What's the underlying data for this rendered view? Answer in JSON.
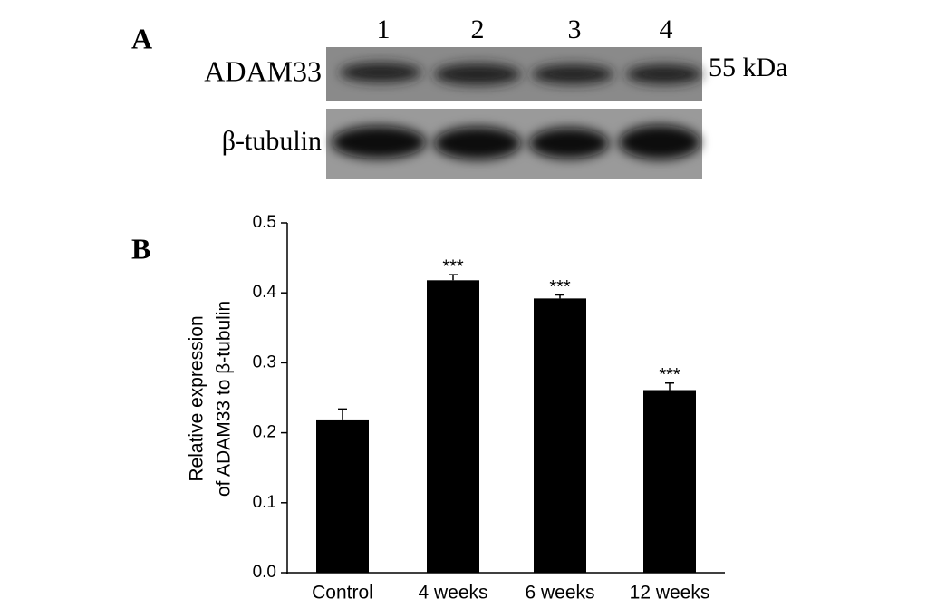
{
  "blot": {
    "panel": "A",
    "lanes": [
      "1",
      "2",
      "3",
      "4"
    ],
    "rows": [
      "ADAM33",
      "β-tubulin"
    ],
    "size_label": "55 kDa"
  },
  "chart_data": {
    "type": "bar",
    "panel": "B",
    "ylabel": [
      "Relative expression",
      "of ADAM33 to β-tubulin"
    ],
    "categories": [
      "Control",
      "4 weeks",
      "6 weeks",
      "12 weeks"
    ],
    "values": [
      0.219,
      0.418,
      0.392,
      0.261
    ],
    "errors": [
      0.015,
      0.008,
      0.005,
      0.01
    ],
    "annotations": [
      null,
      "***",
      "***",
      "***"
    ],
    "color": "#000000",
    "ylim": [
      0,
      0.5
    ],
    "yticks": [
      {
        "value": 0,
        "label": "0.0"
      },
      0.1,
      0.2,
      0.3,
      0.4,
      0.5
    ]
  }
}
